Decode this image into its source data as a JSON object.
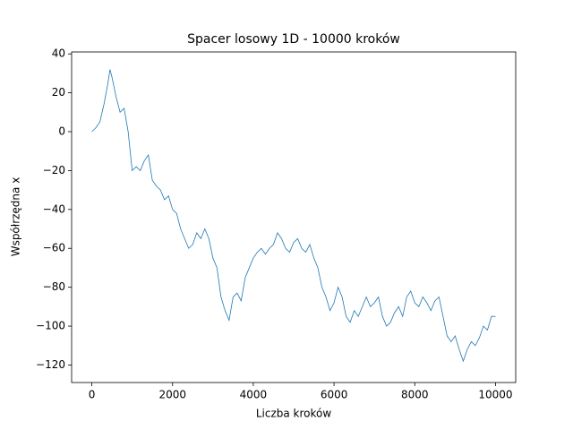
{
  "chart_data": {
    "type": "line",
    "title": "Spacer losowy 1D - 10000 kroków",
    "xlabel": "Liczba kroków",
    "ylabel": "Współrzędna x",
    "x": [
      0,
      100,
      200,
      300,
      400,
      450,
      500,
      600,
      700,
      800,
      900,
      1000,
      1100,
      1200,
      1300,
      1400,
      1500,
      1600,
      1700,
      1800,
      1900,
      2000,
      2100,
      2200,
      2300,
      2400,
      2500,
      2600,
      2700,
      2800,
      2900,
      3000,
      3100,
      3200,
      3300,
      3400,
      3500,
      3600,
      3700,
      3800,
      3900,
      4000,
      4100,
      4200,
      4300,
      4400,
      4500,
      4600,
      4700,
      4800,
      4900,
      5000,
      5100,
      5200,
      5300,
      5400,
      5500,
      5600,
      5700,
      5800,
      5900,
      6000,
      6100,
      6200,
      6300,
      6400,
      6500,
      6600,
      6700,
      6800,
      6900,
      7000,
      7100,
      7200,
      7300,
      7400,
      7500,
      7600,
      7700,
      7800,
      7900,
      8000,
      8100,
      8200,
      8300,
      8400,
      8500,
      8600,
      8700,
      8800,
      8900,
      9000,
      9100,
      9200,
      9300,
      9400,
      9500,
      9600,
      9700,
      9800,
      9900,
      10000
    ],
    "series": [
      {
        "color": "#1f77b4",
        "values": [
          0,
          2,
          5,
          14,
          25,
          32,
          28,
          18,
          10,
          12,
          0,
          -20,
          -18,
          -20,
          -15,
          -12,
          -25,
          -28,
          -30,
          -35,
          -33,
          -40,
          -42,
          -50,
          -55,
          -60,
          -58,
          -52,
          -55,
          -50,
          -55,
          -65,
          -70,
          -85,
          -92,
          -97,
          -85,
          -83,
          -87,
          -75,
          -70,
          -65,
          -62,
          -60,
          -63,
          -60,
          -58,
          -52,
          -55,
          -60,
          -62,
          -57,
          -55,
          -60,
          -62,
          -58,
          -65,
          -70,
          -80,
          -85,
          -92,
          -88,
          -80,
          -85,
          -95,
          -98,
          -92,
          -95,
          -90,
          -85,
          -90,
          -88,
          -85,
          -95,
          -100,
          -98,
          -93,
          -90,
          -95,
          -85,
          -82,
          -88,
          -90,
          -85,
          -88,
          -92,
          -87,
          -85,
          -95,
          -105,
          -108,
          -105,
          -112,
          -118,
          -112,
          -108,
          -110,
          -106,
          -100,
          -102,
          -95,
          -95
        ]
      }
    ],
    "xlim": [
      -500,
      10500
    ],
    "ylim": [
      -129,
      41
    ],
    "xticks": [
      0,
      2000,
      4000,
      6000,
      8000,
      10000
    ],
    "yticks": [
      {
        "value": -120,
        "label": "−120"
      },
      {
        "value": -100,
        "label": "−100"
      },
      {
        "value": -80,
        "label": "−80"
      },
      {
        "value": -60,
        "label": "−60"
      },
      {
        "value": -40,
        "label": "−40"
      },
      {
        "value": -20,
        "label": "−20"
      },
      0,
      20,
      40
    ]
  }
}
